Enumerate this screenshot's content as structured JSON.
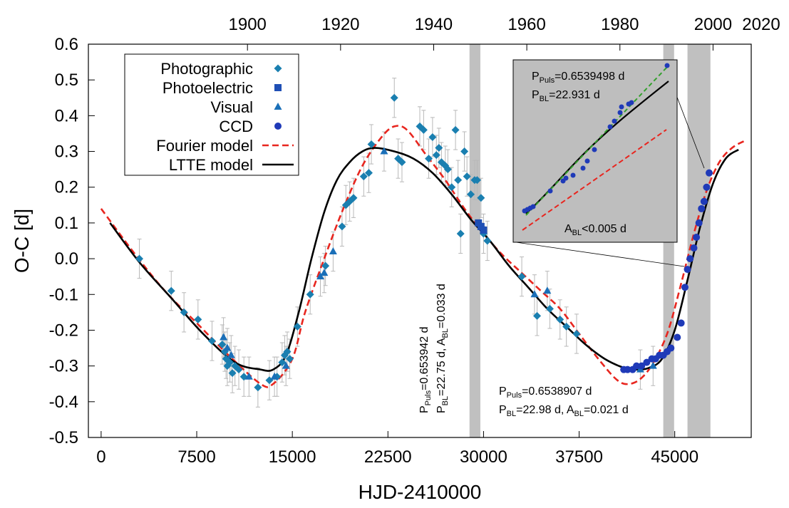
{
  "chart_data": {
    "type": "scatter",
    "xlabel": "HJD-2410000",
    "ylabel": "O-C [d]",
    "xlim": [
      -1000,
      51000
    ],
    "ylim": [
      -0.5,
      0.6
    ],
    "x_ticks": [
      0,
      7500,
      15000,
      22500,
      30000,
      37500,
      45000
    ],
    "y_ticks": [
      0.6,
      0.5,
      0.4,
      0.3,
      0.2,
      0.1,
      0.0,
      -0.1,
      -0.2,
      -0.3,
      -0.4,
      -0.5
    ],
    "y_tick_labels": [
      "0.6",
      "0.5",
      "0.4",
      "0.3",
      "0.2",
      "0.1",
      "0.0",
      "-0.1",
      "-0.2",
      "-0.3",
      "-0.4",
      "-0.5"
    ],
    "x2_ticks_hjd": [
      11480,
      18784,
      26089,
      33394,
      40699,
      48004,
      55308
    ],
    "x2_tick_labels": [
      "1900",
      "1920",
      "1940",
      "1960",
      "1980",
      "2000",
      "2020"
    ],
    "legend_position": "top-left",
    "legend": [
      {
        "label": "Photographic",
        "marker": "diamond",
        "color": "#1a7fb0"
      },
      {
        "label": "Photoelectric",
        "marker": "square",
        "color": "#1f4fb5"
      },
      {
        "label": "Visual",
        "marker": "triangle",
        "color": "#1a6fb8"
      },
      {
        "label": "CCD",
        "marker": "circle",
        "color": "#1f3ab8"
      },
      {
        "label": "Fourier model",
        "marker": "dashed-line",
        "color": "#e8261f"
      },
      {
        "label": "LTTE model",
        "marker": "solid-line",
        "color": "#000000"
      }
    ],
    "shaded_bands_hjd": [
      [
        28900,
        29750
      ],
      [
        44100,
        44950
      ],
      [
        46000,
        47800
      ]
    ],
    "series": [
      {
        "name": "Photographic",
        "marker": "diamond",
        "points": [
          [
            3000,
            0.0
          ],
          [
            5500,
            -0.09
          ],
          [
            6500,
            -0.15
          ],
          [
            7600,
            -0.17
          ],
          [
            8700,
            -0.23
          ],
          [
            9500,
            -0.24
          ],
          [
            9700,
            -0.26
          ],
          [
            9800,
            -0.28
          ],
          [
            9900,
            -0.3
          ],
          [
            10100,
            -0.29
          ],
          [
            10300,
            -0.32
          ],
          [
            10500,
            -0.3
          ],
          [
            10800,
            -0.31
          ],
          [
            11200,
            -0.33
          ],
          [
            12300,
            -0.36
          ],
          [
            13200,
            -0.34
          ],
          [
            13800,
            -0.33
          ],
          [
            14200,
            -0.29
          ],
          [
            14400,
            -0.27
          ],
          [
            14600,
            -0.26
          ],
          [
            14800,
            -0.28
          ],
          [
            15400,
            -0.19
          ],
          [
            16400,
            -0.1
          ],
          [
            17600,
            -0.02
          ],
          [
            18900,
            0.09
          ],
          [
            19200,
            0.15
          ],
          [
            19500,
            0.16
          ],
          [
            19800,
            0.17
          ],
          [
            20600,
            0.23
          ],
          [
            21000,
            0.24
          ],
          [
            21200,
            0.32
          ],
          [
            23000,
            0.45
          ],
          [
            23300,
            0.28
          ],
          [
            23600,
            0.27
          ],
          [
            25000,
            0.37
          ],
          [
            25300,
            0.36
          ],
          [
            25700,
            0.28
          ],
          [
            26000,
            0.34
          ],
          [
            26300,
            0.29
          ],
          [
            26500,
            0.31
          ],
          [
            26700,
            0.27
          ],
          [
            27000,
            0.26
          ],
          [
            27200,
            0.25
          ],
          [
            27500,
            0.2
          ],
          [
            27800,
            0.36
          ],
          [
            28000,
            0.22
          ],
          [
            28200,
            0.07
          ],
          [
            28500,
            0.3
          ],
          [
            28700,
            0.23
          ],
          [
            29000,
            0.18
          ],
          [
            29300,
            0.22
          ],
          [
            29500,
            0.22
          ],
          [
            29800,
            0.17
          ],
          [
            30000,
            0.07
          ],
          [
            30300,
            0.05
          ],
          [
            33000,
            -0.05
          ],
          [
            34200,
            -0.16
          ],
          [
            35200,
            -0.14
          ],
          [
            36000,
            -0.17
          ],
          [
            36500,
            -0.19
          ],
          [
            37300,
            -0.21
          ]
        ]
      },
      {
        "name": "Photoelectric",
        "marker": "square",
        "points": [
          [
            29600,
            0.1
          ],
          [
            29800,
            0.09
          ],
          [
            30000,
            0.08
          ]
        ]
      },
      {
        "name": "Visual",
        "marker": "triangle",
        "points": [
          [
            9600,
            -0.22
          ],
          [
            9900,
            -0.25
          ],
          [
            10200,
            -0.27
          ],
          [
            11600,
            -0.33
          ],
          [
            13600,
            -0.33
          ],
          [
            14500,
            -0.3
          ],
          [
            17200,
            -0.05
          ],
          [
            17500,
            -0.04
          ],
          [
            18200,
            0.02
          ],
          [
            22200,
            0.3
          ],
          [
            34000,
            -0.1
          ],
          [
            35000,
            -0.09
          ],
          [
            42300,
            -0.31
          ],
          [
            43300,
            -0.3
          ]
        ]
      },
      {
        "name": "CCD",
        "marker": "circle",
        "points": [
          [
            41000,
            -0.31
          ],
          [
            41300,
            -0.31
          ],
          [
            41700,
            -0.31
          ],
          [
            42000,
            -0.3
          ],
          [
            42400,
            -0.3
          ],
          [
            42800,
            -0.29
          ],
          [
            43200,
            -0.28
          ],
          [
            43500,
            -0.28
          ],
          [
            43800,
            -0.27
          ],
          [
            44100,
            -0.27
          ],
          [
            44400,
            -0.26
          ],
          [
            44700,
            -0.25
          ],
          [
            45200,
            -0.22
          ],
          [
            45500,
            -0.18
          ],
          [
            45800,
            -0.08
          ],
          [
            46000,
            -0.03
          ],
          [
            46200,
            0.0
          ],
          [
            46500,
            0.03
          ],
          [
            46700,
            0.06
          ],
          [
            46900,
            0.1
          ],
          [
            47100,
            0.14
          ],
          [
            47300,
            0.16
          ],
          [
            47500,
            0.2
          ],
          [
            47700,
            0.24
          ]
        ]
      }
    ],
    "fourier_model": [
      [
        0,
        0.14
      ],
      [
        2500,
        0.02
      ],
      [
        5000,
        -0.09
      ],
      [
        7500,
        -0.18
      ],
      [
        10000,
        -0.27
      ],
      [
        12500,
        -0.35
      ],
      [
        13500,
        -0.35
      ],
      [
        15000,
        -0.28
      ],
      [
        16000,
        -0.15
      ],
      [
        17500,
        0.0
      ],
      [
        19000,
        0.14
      ],
      [
        20500,
        0.26
      ],
      [
        22000,
        0.34
      ],
      [
        23000,
        0.37
      ],
      [
        24000,
        0.36
      ],
      [
        25500,
        0.29
      ],
      [
        27000,
        0.22
      ],
      [
        28500,
        0.14
      ],
      [
        30000,
        0.07
      ],
      [
        31500,
        0.01
      ],
      [
        33000,
        -0.04
      ],
      [
        34500,
        -0.09
      ],
      [
        36000,
        -0.14
      ],
      [
        37500,
        -0.21
      ],
      [
        39000,
        -0.28
      ],
      [
        40500,
        -0.34
      ],
      [
        41500,
        -0.35
      ],
      [
        42500,
        -0.33
      ],
      [
        43500,
        -0.28
      ],
      [
        44500,
        -0.2
      ],
      [
        45500,
        -0.07
      ],
      [
        46500,
        0.07
      ],
      [
        47500,
        0.19
      ],
      [
        48500,
        0.27
      ],
      [
        49500,
        0.31
      ],
      [
        50500,
        0.33
      ]
    ],
    "ltte_model": [
      [
        700,
        0.1
      ],
      [
        3000,
        -0.01
      ],
      [
        5500,
        -0.11
      ],
      [
        8000,
        -0.21
      ],
      [
        10500,
        -0.29
      ],
      [
        12500,
        -0.31
      ],
      [
        13500,
        -0.31
      ],
      [
        14500,
        -0.27
      ],
      [
        15500,
        -0.15
      ],
      [
        16500,
        0.0
      ],
      [
        17500,
        0.13
      ],
      [
        18500,
        0.22
      ],
      [
        19500,
        0.27
      ],
      [
        20500,
        0.3
      ],
      [
        21500,
        0.31
      ],
      [
        23000,
        0.3
      ],
      [
        24500,
        0.28
      ],
      [
        26000,
        0.24
      ],
      [
        27500,
        0.18
      ],
      [
        29000,
        0.11
      ],
      [
        30500,
        0.05
      ],
      [
        32000,
        -0.02
      ],
      [
        33500,
        -0.08
      ],
      [
        35000,
        -0.14
      ],
      [
        36500,
        -0.19
      ],
      [
        38000,
        -0.24
      ],
      [
        39500,
        -0.28
      ],
      [
        41000,
        -0.305
      ],
      [
        42000,
        -0.31
      ],
      [
        43000,
        -0.305
      ],
      [
        44000,
        -0.28
      ],
      [
        45000,
        -0.2
      ],
      [
        46000,
        -0.06
      ],
      [
        47000,
        0.09
      ],
      [
        48000,
        0.21
      ],
      [
        49000,
        0.28
      ],
      [
        50000,
        0.305
      ]
    ],
    "annotations": {
      "band1": {
        "p_puls": "=0.653942 d",
        "p_bl_a_bl": "=22.75 d, A",
        "a_bl_val": "=0.033 d"
      },
      "band2": {
        "p_puls": "=0.6538907 d",
        "p_bl_a_bl": "=22.98 d, A",
        "a_bl_val": "=0.021 d"
      },
      "inset": {
        "p_puls": "=0.6539498 d",
        "p_bl": "=22.931 d",
        "a_bl": "<0.005 d"
      },
      "sub_puls": "Puls",
      "sub_bl": "BL",
      "sym_p": "P",
      "sym_a": "A"
    }
  }
}
